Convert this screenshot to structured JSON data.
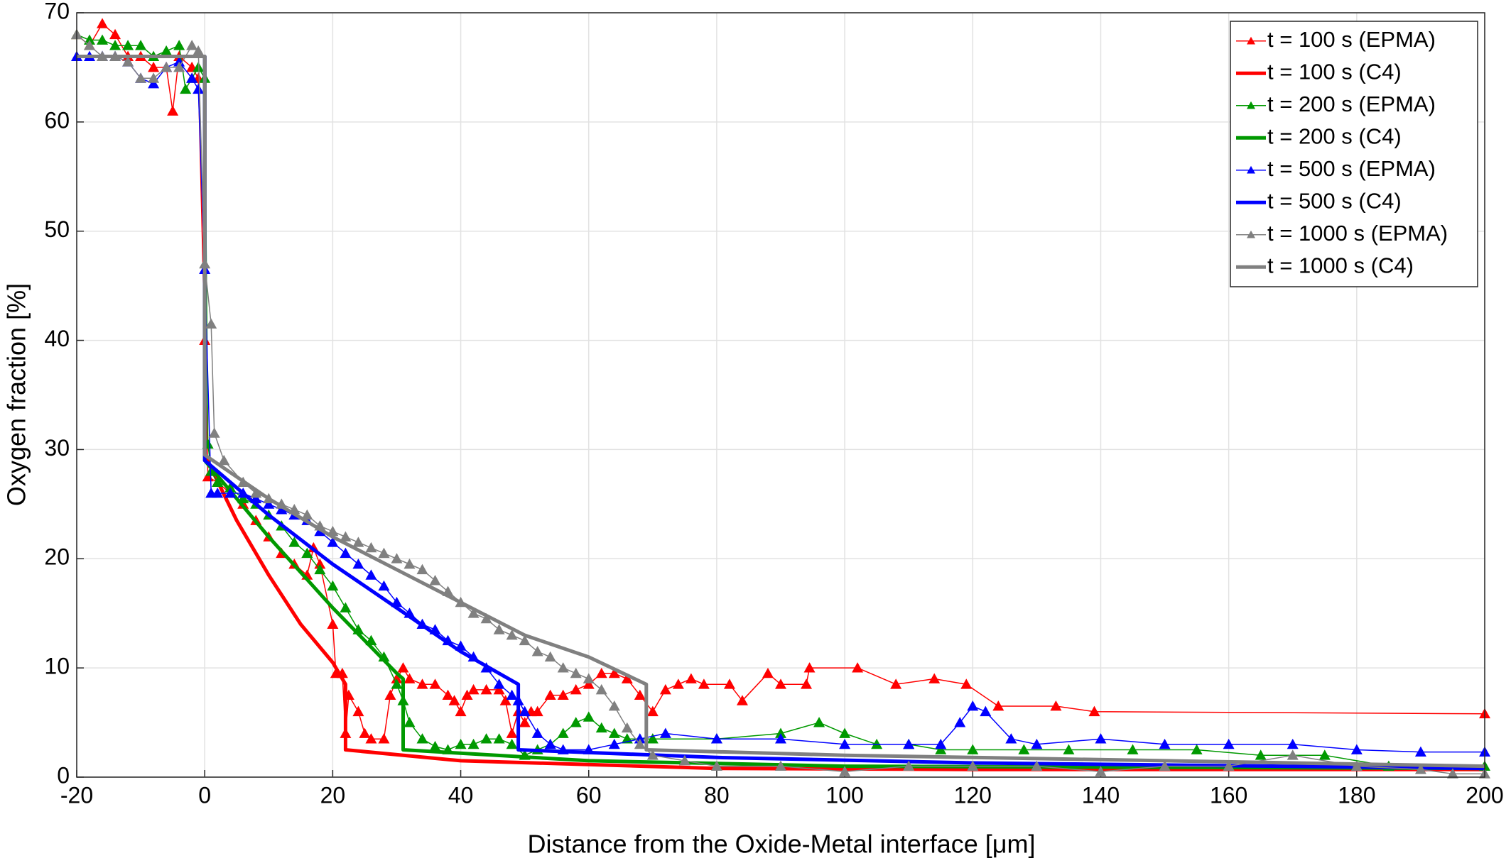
{
  "chart_data": {
    "type": "line",
    "xlabel": "Distance from the Oxide-Metal interface [μm]",
    "ylabel": "Oxygen fraction [%]",
    "xlim": [
      -20,
      200
    ],
    "xticks": [
      -20,
      0,
      20,
      40,
      60,
      80,
      100,
      120,
      140,
      160,
      180,
      200
    ],
    "ylim": [
      0,
      70
    ],
    "yticks": [
      0,
      10,
      20,
      30,
      40,
      50,
      60,
      70
    ],
    "grid": true,
    "legend": "upper right",
    "series": [
      {
        "name": "t = 100 s (EPMA)",
        "color": "#ff0000",
        "marker": "triangle",
        "x": [
          -20,
          -18,
          -16,
          -14,
          -12,
          -10,
          -8,
          -6,
          -5,
          -4,
          -2,
          -1,
          0,
          0.5,
          2,
          4,
          6,
          8,
          10,
          12,
          14,
          16,
          17,
          18,
          20,
          20.5,
          21.5,
          22,
          22.5,
          24,
          25,
          26,
          28,
          29,
          30,
          31,
          32,
          34,
          36,
          38,
          39,
          40,
          41,
          42,
          44,
          46,
          47,
          48,
          49,
          50,
          51,
          52,
          54,
          56,
          58,
          60,
          62,
          64,
          66,
          68,
          70,
          72,
          74,
          76,
          78,
          82,
          84,
          88,
          90,
          94,
          94.5,
          102,
          108,
          114,
          119,
          124,
          133,
          139,
          200
        ],
        "values": [
          68,
          67,
          69,
          68,
          66,
          66,
          65,
          65,
          61,
          66,
          65,
          64,
          40,
          27.5,
          27,
          26,
          25,
          23.5,
          22,
          20.5,
          19.5,
          18.5,
          21,
          19.5,
          14,
          9.5,
          9.5,
          4,
          7.5,
          6,
          4,
          3.5,
          3.5,
          7.5,
          9,
          10,
          9,
          8.5,
          8.5,
          7.5,
          7,
          6,
          7.5,
          8,
          8,
          8,
          7,
          4,
          6,
          5,
          6,
          6,
          7.5,
          7.5,
          8,
          8.5,
          9.5,
          9.5,
          9,
          7.5,
          6,
          8,
          8.5,
          9,
          8.5,
          8.5,
          7,
          9.5,
          8.5,
          8.5,
          10,
          10,
          8.5,
          9,
          8.5,
          6.5,
          6.5,
          6,
          5.8
        ]
      },
      {
        "name": "t = 100 s (C4)",
        "color": "#ff0000",
        "x": [
          -20,
          0,
          0,
          5,
          10,
          15,
          20,
          22,
          22,
          40,
          80,
          120,
          200
        ],
        "values": [
          66,
          66,
          29.5,
          23.5,
          18.5,
          14,
          10.5,
          8.5,
          2.5,
          1.5,
          0.8,
          0.7,
          0.7
        ]
      },
      {
        "name": "t = 200 s (EPMA)",
        "color": "#009900",
        "marker": "triangle",
        "x": [
          -20,
          -18,
          -16,
          -14,
          -12,
          -10,
          -8,
          -6,
          -4,
          -3,
          -2,
          -1,
          0,
          0.5,
          1,
          2,
          4,
          6,
          8,
          10,
          12,
          14,
          16,
          18,
          20,
          22,
          24,
          26,
          28,
          30,
          31,
          32,
          34,
          36,
          38,
          40,
          42,
          44,
          46,
          48,
          50,
          52,
          54,
          56,
          58,
          60,
          62,
          64,
          66,
          70,
          80,
          90,
          96,
          100,
          105,
          110,
          115,
          120,
          128,
          135,
          145,
          155,
          165,
          175,
          185,
          200
        ],
        "values": [
          68,
          67.5,
          67.5,
          67,
          67,
          67,
          66,
          66.5,
          67,
          63,
          64,
          65,
          64,
          30.5,
          28,
          27,
          26.5,
          25.5,
          25,
          24,
          23,
          21.5,
          20.5,
          19,
          17.5,
          15.5,
          13.5,
          12.5,
          11,
          8.5,
          7,
          5,
          3.5,
          2.8,
          2.5,
          3,
          3,
          3.5,
          3.5,
          3,
          2,
          2.5,
          3,
          4,
          5,
          5.5,
          4.5,
          4,
          3.5,
          3.5,
          3.5,
          4,
          5,
          4,
          3,
          3,
          2.5,
          2.5,
          2.5,
          2.5,
          2.5,
          2.5,
          2,
          2,
          1,
          1
        ]
      },
      {
        "name": "t = 200 s (C4)",
        "color": "#009900",
        "x": [
          -20,
          0,
          0,
          10,
          20,
          30,
          31,
          31,
          60,
          100,
          200
        ],
        "values": [
          66,
          66,
          29,
          22,
          15.5,
          9.5,
          9,
          2.5,
          1.5,
          1,
          0.8
        ]
      },
      {
        "name": "t = 500 s (EPMA)",
        "color": "#0000ff",
        "marker": "triangle",
        "x": [
          -20,
          -18,
          -16,
          -14,
          -12,
          -10,
          -8,
          -6,
          -4,
          -2,
          -1,
          0,
          1,
          2,
          4,
          6,
          8,
          10,
          12,
          14,
          16,
          18,
          20,
          22,
          24,
          26,
          28,
          30,
          32,
          34,
          36,
          38,
          40,
          42,
          44,
          46,
          48,
          49,
          50,
          52,
          54,
          56,
          60,
          64,
          68,
          72,
          80,
          90,
          100,
          110,
          115,
          118,
          120,
          122,
          126,
          130,
          140,
          150,
          160,
          170,
          180,
          190,
          200
        ],
        "values": [
          66,
          66,
          66,
          66,
          65.5,
          64,
          63.5,
          65,
          65.5,
          64,
          63,
          46.5,
          26,
          26,
          26,
          26,
          25.5,
          25,
          24.5,
          24,
          23.5,
          22.5,
          21.5,
          20.5,
          19.5,
          18.5,
          17.5,
          16,
          15,
          14,
          13.5,
          12.5,
          12,
          11,
          10,
          8.5,
          7.5,
          7,
          6,
          4,
          3,
          2.5,
          2.5,
          3,
          3.5,
          4,
          3.5,
          3.5,
          3,
          3,
          3,
          5,
          6.5,
          6,
          3.5,
          3,
          3.5,
          3,
          3,
          3,
          2.5,
          2.3,
          2.3
        ]
      },
      {
        "name": "t = 500 s (C4)",
        "color": "#0000ff",
        "x": [
          -20,
          0,
          0,
          10,
          20,
          30,
          40,
          49,
          49,
          80,
          120,
          200
        ],
        "values": [
          66,
          66,
          29,
          24,
          19.5,
          15.5,
          11.5,
          8.5,
          2.5,
          1.8,
          1.3,
          0.8
        ]
      },
      {
        "name": "t = 1000 s (EPMA)",
        "color": "#808080",
        "marker": "triangle",
        "x": [
          -20,
          -18,
          -16,
          -14,
          -12,
          -10,
          -8,
          -6,
          -4,
          -2,
          -1,
          0,
          1,
          1.5,
          3,
          6,
          8,
          10,
          12,
          14,
          16,
          18,
          20,
          22,
          24,
          26,
          28,
          30,
          32,
          34,
          36,
          38,
          40,
          42,
          44,
          46,
          48,
          50,
          52,
          54,
          56,
          58,
          60,
          62,
          64,
          66,
          68,
          70,
          75,
          80,
          90,
          100,
          110,
          120,
          130,
          140,
          150,
          160,
          170,
          180,
          190,
          195,
          200
        ],
        "values": [
          68,
          67,
          66,
          66,
          65.5,
          64,
          64,
          65,
          65,
          67,
          66.5,
          47,
          41.5,
          31.5,
          29,
          27,
          26,
          25.5,
          25,
          24.5,
          24,
          23,
          22.5,
          22,
          21.5,
          21,
          20.5,
          20,
          19.5,
          19,
          18,
          17,
          16,
          15,
          14.5,
          13.5,
          13,
          12.5,
          11.5,
          11,
          10,
          9.5,
          9,
          8,
          6.5,
          4.5,
          3,
          2,
          1.5,
          1,
          1,
          0.5,
          1,
          1,
          1,
          0.5,
          1,
          1,
          2,
          1,
          0.7,
          0.3,
          0.3
        ]
      },
      {
        "name": "t = 1000 s (C4)",
        "color": "#808080",
        "x": [
          -20,
          0,
          0,
          10,
          20,
          30,
          40,
          50,
          60,
          69,
          69,
          100,
          150,
          200
        ],
        "values": [
          66,
          66,
          29.5,
          25.5,
          22,
          19,
          16,
          13,
          11,
          8.5,
          2.5,
          2,
          1.5,
          1
        ]
      }
    ]
  }
}
